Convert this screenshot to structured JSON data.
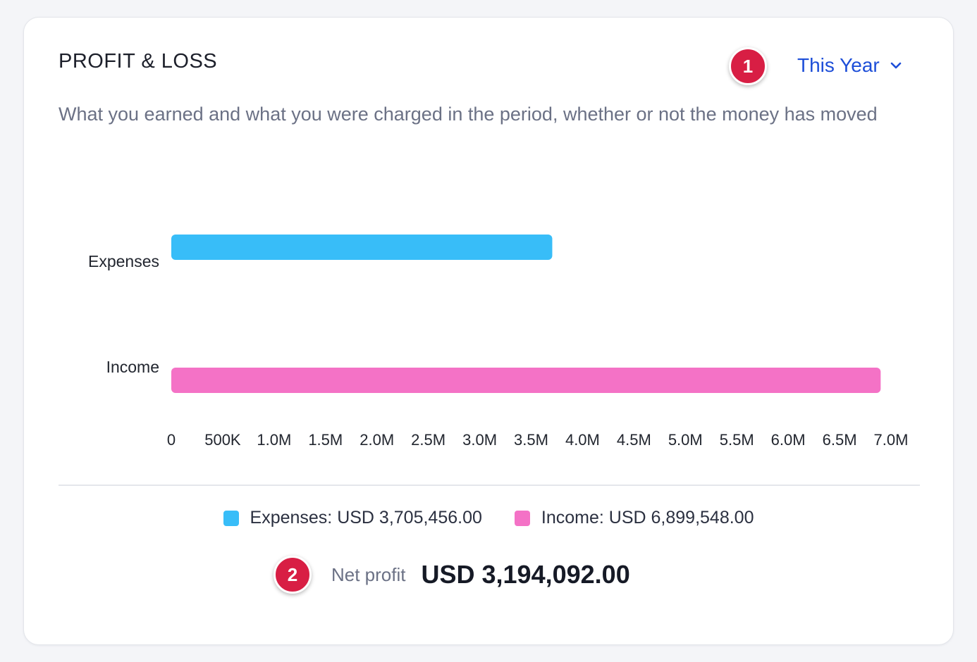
{
  "card": {
    "title": "PROFIT & LOSS",
    "subtitle": "What you earned and what you were charged in the period, whether or not the money has moved",
    "period_label": "This Year",
    "period_icon": "chevron-down-icon"
  },
  "annotations": {
    "badge_1": "1",
    "badge_2": "2"
  },
  "chart_data": {
    "type": "bar",
    "orientation": "horizontal",
    "categories": [
      "Expenses",
      "Income"
    ],
    "values": [
      3705456,
      6899548
    ],
    "colors": [
      "#38bdf8",
      "#f472c6"
    ],
    "xlim": [
      0,
      7000000
    ],
    "x_ticks": [
      "0",
      "500K",
      "1.0M",
      "1.5M",
      "2.0M",
      "2.5M",
      "3.0M",
      "3.5M",
      "4.0M",
      "4.5M",
      "5.0M",
      "5.5M",
      "6.0M",
      "6.5M",
      "7.0M"
    ],
    "grid": false
  },
  "legend": [
    {
      "label": "Expenses: USD 3,705,456.00",
      "color": "#38bdf8"
    },
    {
      "label": "Income: USD 6,899,548.00",
      "color": "#f472c6"
    }
  ],
  "summary": {
    "net_label": "Net profit",
    "net_value": "USD 3,194,092.00"
  }
}
